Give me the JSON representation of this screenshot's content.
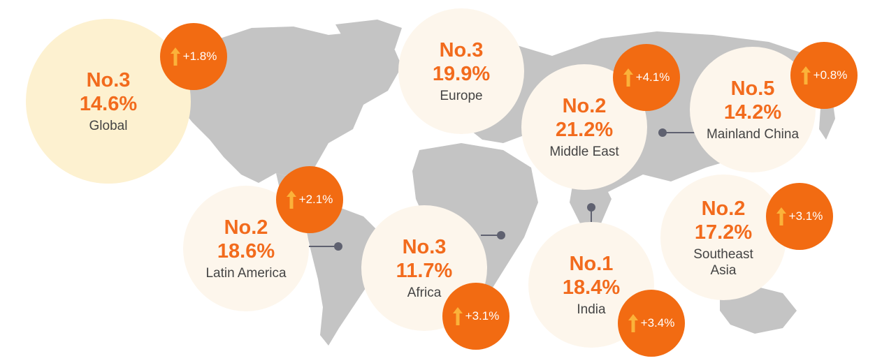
{
  "colors": {
    "accent_orange": "#f26b1d",
    "badge_orange": "#f26b12",
    "arrow_yellow": "#fbb23a",
    "map_gray": "#c4c4c4",
    "circle_light": "#fdf6ec",
    "circle_global": "#fdf1d0",
    "text_dark": "#444444",
    "connector": "#5f6170"
  },
  "map": {
    "type": "world map with regional statistics",
    "icon": "world-map"
  },
  "regions": [
    {
      "id": "global",
      "rank": "No.3",
      "share": "14.6%",
      "region": "Global",
      "change": "+1.8%"
    },
    {
      "id": "europe",
      "rank": "No.3",
      "share": "19.9%",
      "region": "Europe",
      "change": ""
    },
    {
      "id": "middle-east",
      "rank": "No.2",
      "share": "21.2%",
      "region": "Middle East",
      "change": "+4.1%"
    },
    {
      "id": "mainland-china",
      "rank": "No.5",
      "share": "14.2%",
      "region": "Mainland China",
      "change": "+0.8%"
    },
    {
      "id": "latin-america",
      "rank": "No.2",
      "share": "18.6%",
      "region": "Latin America",
      "change": "+2.1%"
    },
    {
      "id": "africa",
      "rank": "No.3",
      "share": "11.7%",
      "region": "Africa",
      "change": "+3.1%"
    },
    {
      "id": "india",
      "rank": "No.1",
      "share": "18.4%",
      "region": "India",
      "change": "+3.4%"
    },
    {
      "id": "southeast-asia",
      "rank": "No.2",
      "share": "17.2%",
      "region": "Southeast",
      "region_line2": "Asia",
      "change": "+3.1%"
    }
  ]
}
